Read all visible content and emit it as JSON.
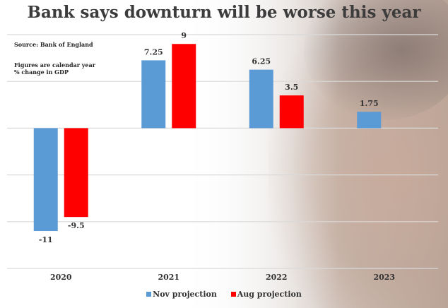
{
  "header": {
    "title": "Bank says downturn will be worse this year"
  },
  "notes": {
    "source": "Source: Bank of England",
    "line1": "Figures are calendar year",
    "line2": "% change in GDP"
  },
  "colors": {
    "nov": "#5b9bd5",
    "aug": "#ff0000",
    "grid": "#d9d9d9"
  },
  "chart_data": {
    "type": "bar",
    "title": "Bank says downturn will be worse this year",
    "xlabel": "",
    "ylabel": "% change in GDP",
    "categories": [
      "2020",
      "2021",
      "2022",
      "2023"
    ],
    "series": [
      {
        "name": "Nov projection",
        "values": [
          -11,
          7.25,
          6.25,
          1.75
        ],
        "labels": [
          "-11",
          "7.25",
          "6.25",
          "1.75"
        ]
      },
      {
        "name": "Aug projection",
        "values": [
          -9.5,
          9,
          3.5,
          null
        ],
        "labels": [
          "-9.5",
          "9",
          "3.5",
          ""
        ]
      }
    ],
    "ylim": [
      -15,
      10
    ],
    "gridlines": [
      10,
      5,
      0,
      -5,
      -10,
      -15
    ],
    "grid": true,
    "legend": "bottom"
  }
}
